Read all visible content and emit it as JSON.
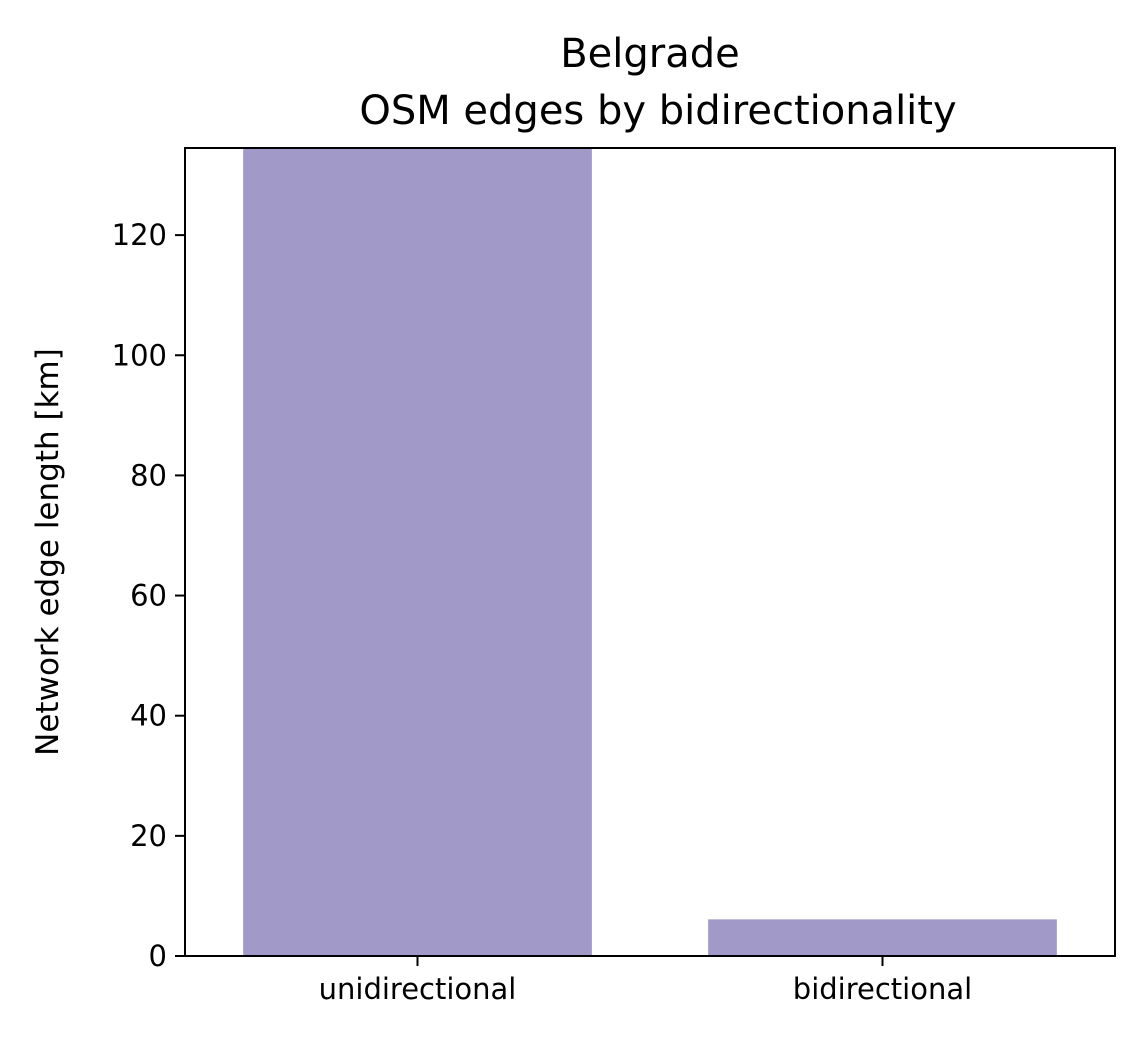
{
  "chart_data": {
    "type": "bar",
    "title": "Belgrade",
    "subtitle": "OSM edges by bidirectionality",
    "xlabel": "",
    "ylabel": "Network edge length [km]",
    "categories": [
      "unidirectional",
      "bidirectional"
    ],
    "values": [
      135,
      6.1
    ],
    "ylim": [
      0,
      134.5
    ],
    "yticks": [
      0,
      20,
      40,
      60,
      80,
      100,
      120
    ],
    "bar_color": "#a19ac9",
    "grid": false,
    "legend": "none"
  }
}
